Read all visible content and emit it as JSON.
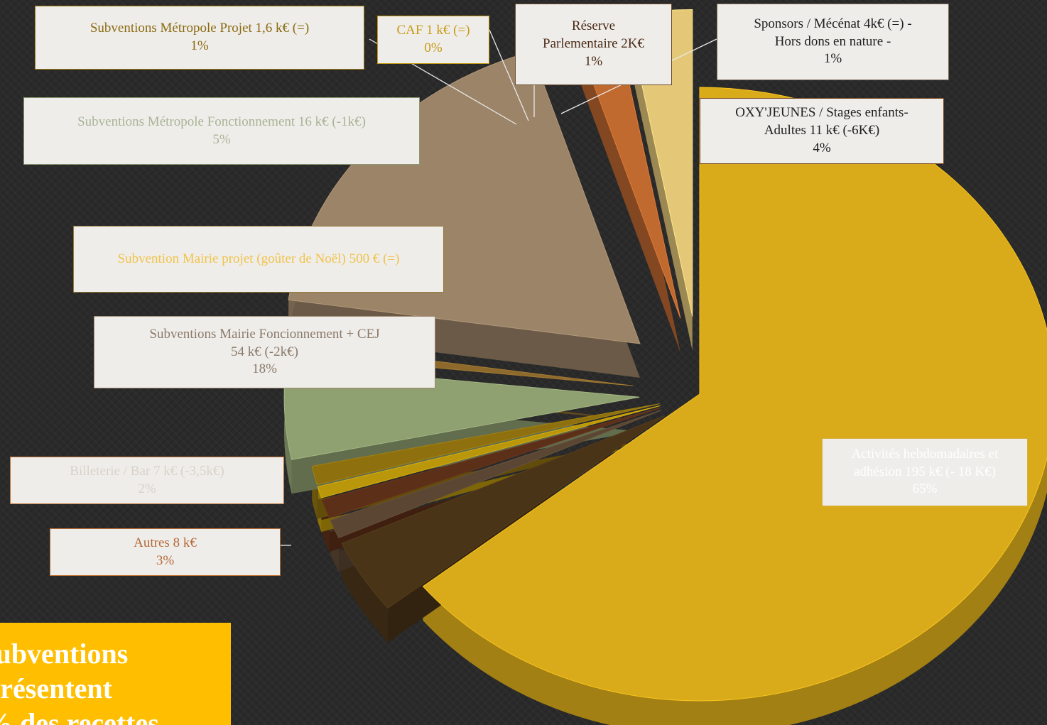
{
  "chart_data": {
    "type": "pie",
    "style": "3d-exploded",
    "slices": [
      {
        "name": "Activités hebdomadaires et adhésion 195 k€ (- 18 K€)",
        "value": 65,
        "color": "#d9ab1a",
        "label_color": "#ffffff"
      },
      {
        "name": "OXY'JEUNES / Stages enfants-Adultes 11 k€ (-6K€)",
        "value": 4,
        "color": "#4a3418",
        "label_color": "#1e1e1e"
      },
      {
        "name": "Sponsors / Mécénat 4k€ (=) - Hors dons en nature -",
        "value": 1,
        "color": "#5a4632",
        "label_color": "#1e1e1e"
      },
      {
        "name": "Réserve Parlementaire 2K€",
        "value": 1,
        "color": "#5c2f18",
        "label_color": "#4a2a16"
      },
      {
        "name": "CAF 1 k€ (=)",
        "value": 0,
        "color": "#b9960a",
        "label_color": "#c79a12"
      },
      {
        "name": "Subventions Métropole Projet 1,6 k€ (=)",
        "value": 1,
        "color": "#8f700e",
        "label_color": "#8a6a10"
      },
      {
        "name": "Subventions Métropole Fonctionnement 16 k€ (-1k€)",
        "value": 5,
        "color": "#8fa071",
        "label_color": "#a9b395"
      },
      {
        "name": "Subvention Mairie projet (goûter de Noël) 500 € (=)",
        "value": 0,
        "color": "#8d6a2c",
        "label_color": "#f0c34a"
      },
      {
        "name": "Subventions Mairie Foncionnement + CEJ 54 k€ (-2k€)",
        "value": 18,
        "color": "#9c8468",
        "label_color": "#8a7a6a"
      },
      {
        "name": "Billeterie / Bar 7 k€ (-3,5k€)",
        "value": 2,
        "color": "#c06a30",
        "label_color": "#d8d2c8"
      },
      {
        "name": "Autres 8 k€",
        "value": 3,
        "color": "#e4c878",
        "label_color": "#b5693a"
      }
    ]
  },
  "labels": [
    {
      "lines": [
        "Activités hebdomadaires et",
        "adhésion 195 k€ (- 18 K€)",
        "65%"
      ]
    },
    {
      "lines": [
        "OXY'JEUNES / Stages enfants-",
        "Adultes 11 k€ (-6K€)",
        "4%"
      ]
    },
    {
      "lines": [
        "Sponsors / Mécénat  4k€  (=) -",
        "Hors dons en nature -",
        "1%"
      ]
    },
    {
      "lines": [
        "Réserve",
        "Parlementaire 2K€",
        "1%"
      ]
    },
    {
      "lines": [
        "CAF 1 k€ (=)",
        "0%"
      ]
    },
    {
      "lines": [
        "Subventions Métropole Projet 1,6 k€ (=)",
        "1%"
      ]
    },
    {
      "lines": [
        "Subventions Métropole Fonctionnement 16 k€ (-1k€)",
        "5%"
      ]
    },
    {
      "lines": [
        "Subvention Mairie projet (goûter de Noël) 500 € (=)"
      ]
    },
    {
      "lines": [
        "Subventions Mairie Foncionnement + CEJ",
        "54 k€  (-2k€)",
        "18%"
      ]
    },
    {
      "lines": [
        "Billeterie / Bar 7 k€ (-3,5k€)",
        "2%"
      ]
    },
    {
      "lines": [
        "Autres 8 k€",
        "3%"
      ]
    }
  ],
  "callout": {
    "lines": [
      "subventions",
      "présentent",
      "% des recettes"
    ]
  }
}
